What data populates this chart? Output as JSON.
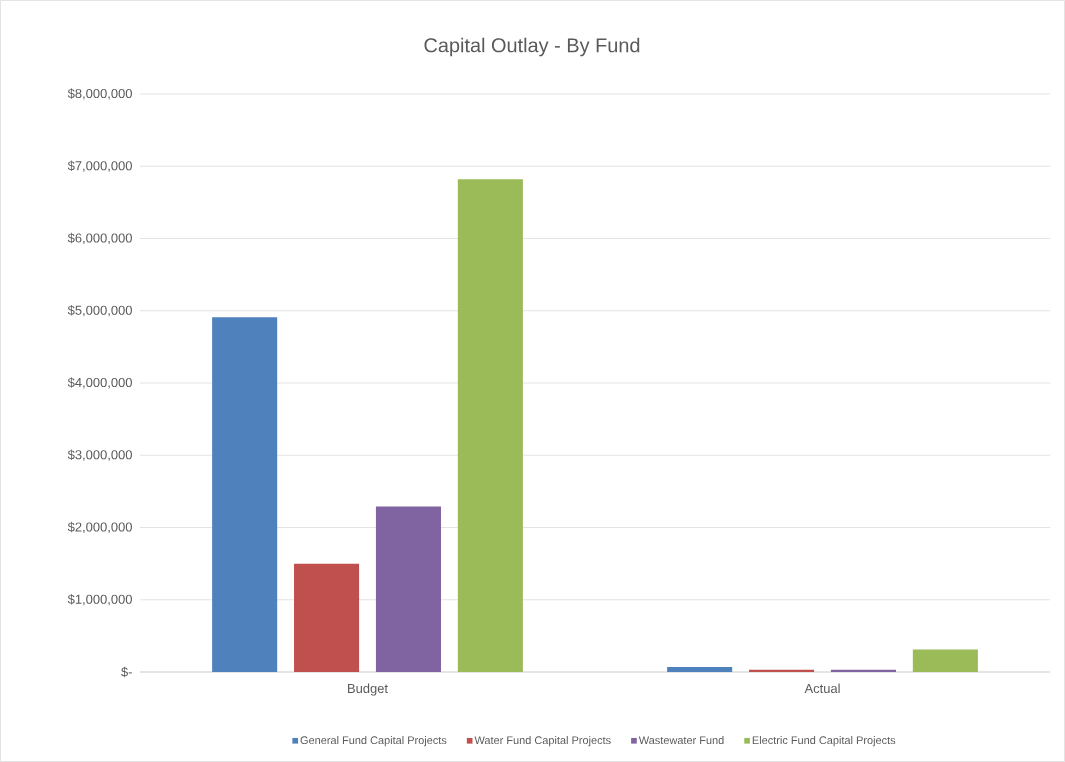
{
  "chart_data": {
    "type": "bar",
    "title": "Capital Outlay - By Fund",
    "categories": [
      "Budget",
      "Actual"
    ],
    "series": [
      {
        "name": "General Fund Capital Projects",
        "color": "#4f81bd",
        "values": [
          4910000,
          70000
        ]
      },
      {
        "name": "Water Fund Capital Projects",
        "color": "#c0504d",
        "values": [
          1500000,
          30000
        ]
      },
      {
        "name": "Wastewater Fund",
        "color": "#8064a2",
        "values": [
          2290000,
          30000
        ]
      },
      {
        "name": "Electric Fund Capital Projects",
        "color": "#9bbb59",
        "values": [
          6820000,
          310000
        ]
      }
    ],
    "ylim": [
      0,
      8000000
    ],
    "yticks": [
      {
        "value": 0,
        "label": "$-"
      },
      {
        "value": 1000000,
        "label": "$1,000,000"
      },
      {
        "value": 2000000,
        "label": "$2,000,000"
      },
      {
        "value": 3000000,
        "label": "$3,000,000"
      },
      {
        "value": 4000000,
        "label": "$4,000,000"
      },
      {
        "value": 5000000,
        "label": "$5,000,000"
      },
      {
        "value": 6000000,
        "label": "$6,000,000"
      },
      {
        "value": 7000000,
        "label": "$7,000,000"
      },
      {
        "value": 8000000,
        "label": "$8,000,000"
      }
    ],
    "grid": "y",
    "legend": "bottom"
  }
}
